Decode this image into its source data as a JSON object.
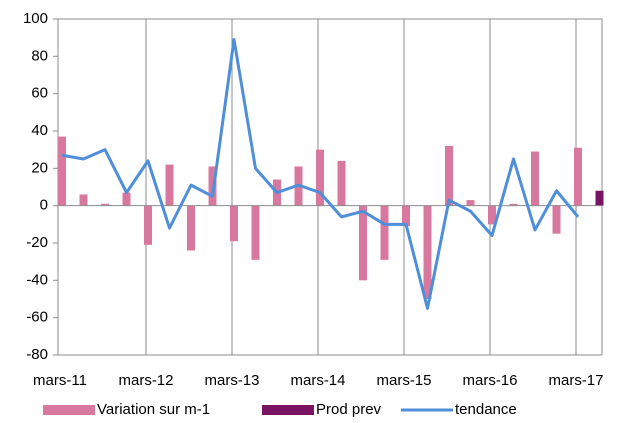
{
  "chart_data": {
    "type": "bar-line",
    "categories": [
      "mars-11",
      null,
      null,
      null,
      "mars-12",
      null,
      null,
      null,
      "mars-13",
      null,
      null,
      null,
      "mars-14",
      null,
      null,
      null,
      "mars-15",
      null,
      null,
      null,
      "mars-16",
      null,
      null,
      null,
      "mars-17",
      null
    ],
    "series": [
      {
        "name": "Variation sur m-1",
        "type": "bar",
        "color": "#d9789f",
        "values": [
          37,
          6,
          1,
          7,
          -21,
          22,
          -24,
          21,
          -19,
          -29,
          14,
          21,
          30,
          24,
          -40,
          -29,
          -11,
          -50,
          32,
          3,
          -10,
          1,
          29,
          -15,
          31,
          null
        ]
      },
      {
        "name": "Prod prev",
        "type": "bar",
        "color": "#7a1462",
        "values": [
          null,
          null,
          null,
          null,
          null,
          null,
          null,
          null,
          null,
          null,
          null,
          null,
          null,
          null,
          null,
          null,
          null,
          null,
          null,
          null,
          null,
          null,
          null,
          null,
          null,
          8
        ]
      },
      {
        "name": "tendance",
        "type": "line",
        "color": "#4f8fd9",
        "values": [
          27,
          25,
          30,
          7,
          24,
          -12,
          11,
          5,
          89,
          20,
          7,
          11,
          7,
          -6,
          -3,
          -10,
          -10,
          -55,
          3,
          -3,
          -16,
          25,
          -13,
          8,
          -6,
          null
        ]
      }
    ],
    "ylim": [
      -80,
      100
    ],
    "yticks": [
      -80,
      -60,
      -40,
      -20,
      0,
      20,
      40,
      60,
      80,
      100
    ],
    "grid": "x",
    "legend": "bottom"
  }
}
